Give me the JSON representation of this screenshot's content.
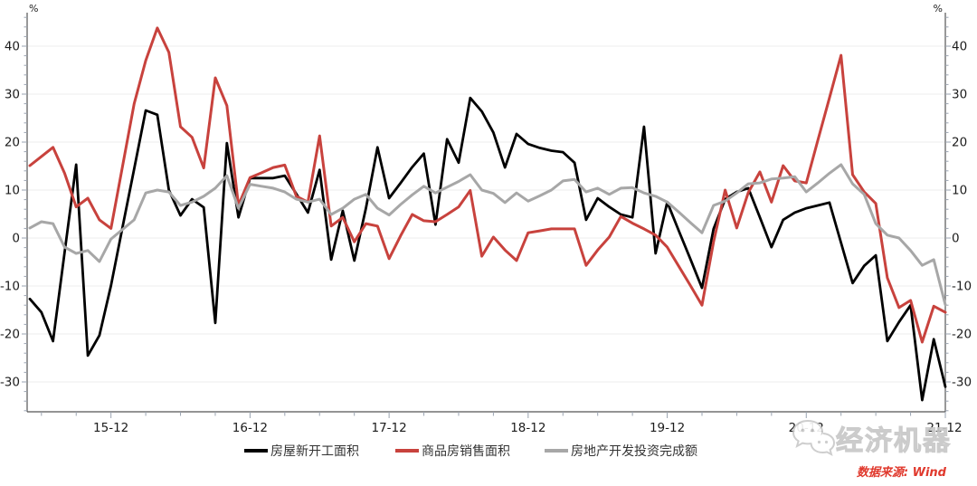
{
  "chart_data": {
    "type": "line",
    "title": "",
    "unit_label_left": "%",
    "unit_label_right": "%",
    "grid": true,
    "legend_position": "bottom",
    "ylim": [
      -36,
      46
    ],
    "y_ticks": [
      40,
      30,
      20,
      10,
      0,
      -10,
      -20,
      -30
    ],
    "y_tick_labels": [
      "40",
      "30",
      "20",
      "10",
      "0",
      "-10",
      "-20",
      "-30"
    ],
    "x_major_tick_labels": [
      "15-12",
      "16-12",
      "17-12",
      "18-12",
      "19-12",
      "20-12",
      "21-12"
    ],
    "x": [
      "15-05",
      "15-06",
      "15-07",
      "15-08",
      "15-09",
      "15-10",
      "15-11",
      "15-12",
      "16-01",
      "16-02",
      "16-03",
      "16-04",
      "16-05",
      "16-06",
      "16-07",
      "16-08",
      "16-09",
      "16-10",
      "16-11",
      "16-12",
      "17-01",
      "17-02",
      "17-03",
      "17-04",
      "17-05",
      "17-06",
      "17-07",
      "17-08",
      "17-09",
      "17-10",
      "17-11",
      "17-12",
      "18-01",
      "18-02",
      "18-03",
      "18-04",
      "18-05",
      "18-06",
      "18-07",
      "18-08",
      "18-09",
      "18-10",
      "18-11",
      "18-12",
      "19-01",
      "19-02",
      "19-03",
      "19-04",
      "19-05",
      "19-06",
      "19-07",
      "19-08",
      "19-09",
      "19-10",
      "19-11",
      "19-12",
      "20-01",
      "20-02",
      "20-03",
      "20-04",
      "20-05",
      "20-06",
      "20-07",
      "20-08",
      "20-09",
      "20-10",
      "20-11",
      "20-12",
      "21-01",
      "21-02",
      "21-03",
      "21-04",
      "21-05",
      "21-06",
      "21-07",
      "21-08",
      "21-09",
      "21-10",
      "21-11",
      "21-12"
    ],
    "series": [
      {
        "name": "房屋新开工面积",
        "color": "#000000",
        "values": [
          -12.7,
          -15.5,
          -21.5,
          -3.0,
          15.3,
          -24.5,
          -20.3,
          -9.9,
          2.3,
          14.4,
          26.6,
          25.7,
          10.0,
          4.7,
          8.1,
          6.4,
          -17.7,
          19.8,
          4.3,
          12.5,
          12.5,
          12.5,
          13.0,
          9.2,
          5.3,
          14.2,
          -4.5,
          5.7,
          -4.7,
          6.2,
          18.9,
          8.3,
          11.5,
          14.8,
          17.6,
          2.8,
          20.6,
          15.7,
          29.2,
          26.4,
          22.0,
          14.7,
          21.7,
          19.6,
          18.8,
          18.2,
          17.9,
          15.7,
          3.8,
          8.3,
          6.5,
          4.9,
          4.3,
          23.2,
          -3.2,
          7.5,
          1.5,
          -4.4,
          -10.4,
          1.9,
          8.1,
          9.6,
          10.4,
          4.3,
          -1.9,
          3.8,
          5.3,
          6.2,
          6.8,
          7.4,
          -1.0,
          -9.4,
          -5.8,
          -3.6,
          -21.5,
          -17.5,
          -14.0,
          -33.8,
          -21.1,
          -31.0
        ]
      },
      {
        "name": "商品房销售面积",
        "color": "#c8423d",
        "values": [
          15.1,
          17.0,
          18.9,
          13.5,
          6.5,
          8.3,
          3.8,
          2.0,
          15.0,
          28.0,
          37.0,
          43.8,
          38.7,
          23.2,
          21.0,
          14.6,
          33.4,
          27.6,
          6.8,
          12.6,
          13.6,
          14.7,
          15.2,
          8.7,
          7.5,
          21.3,
          2.5,
          4.3,
          -0.8,
          3.0,
          2.5,
          -4.3,
          0.5,
          4.9,
          3.6,
          3.4,
          4.9,
          6.5,
          9.9,
          -3.8,
          0.2,
          -2.5,
          -4.7,
          1.1,
          1.5,
          1.9,
          1.9,
          1.9,
          -5.7,
          -2.5,
          0.2,
          4.5,
          3.1,
          1.9,
          0.6,
          -1.9,
          -5.9,
          -9.9,
          -14.0,
          -0.8,
          10.0,
          2.1,
          9.5,
          13.8,
          7.5,
          15.1,
          11.9,
          11.5,
          20.4,
          29.2,
          38.1,
          13.2,
          9.6,
          7.2,
          -8.3,
          -14.5,
          -13.0,
          -21.7,
          -14.2,
          -15.5
        ]
      },
      {
        "name": "房地产开发投资完成额",
        "color": "#a7a7a7",
        "values": [
          2.1,
          3.4,
          3.0,
          -1.9,
          -3.2,
          -2.6,
          -4.9,
          -0.2,
          1.8,
          3.8,
          9.4,
          10.0,
          9.6,
          6.8,
          7.5,
          8.7,
          10.4,
          13.0,
          6.2,
          11.2,
          10.8,
          10.4,
          9.6,
          8.1,
          7.5,
          8.1,
          4.9,
          6.2,
          8.1,
          9.1,
          6.2,
          4.8,
          7.0,
          9.0,
          10.8,
          9.4,
          10.6,
          11.8,
          13.2,
          10.0,
          9.3,
          7.4,
          9.4,
          7.7,
          8.8,
          10.0,
          11.9,
          12.2,
          9.6,
          10.4,
          9.1,
          10.4,
          10.5,
          9.4,
          8.7,
          7.5,
          5.4,
          3.2,
          1.1,
          6.8,
          7.7,
          9.4,
          11.3,
          11.5,
          12.3,
          12.5,
          12.8,
          9.6,
          11.5,
          13.5,
          15.3,
          11.3,
          9.1,
          3.0,
          0.6,
          0.0,
          -2.6,
          -5.7,
          -4.5,
          -13.9
        ]
      }
    ]
  },
  "legend": {
    "items": [
      {
        "label": "房屋新开工面积",
        "color": "#000000"
      },
      {
        "label": "商品房销售面积",
        "color": "#c8423d"
      },
      {
        "label": "房地产开发投资完成额",
        "color": "#a7a7a7"
      }
    ]
  },
  "watermark": {
    "text": "经济机器",
    "icon": "wechat-bubbles-icon"
  },
  "source_note": {
    "text": "数据来源: Wind",
    "color": "#e0382c"
  }
}
